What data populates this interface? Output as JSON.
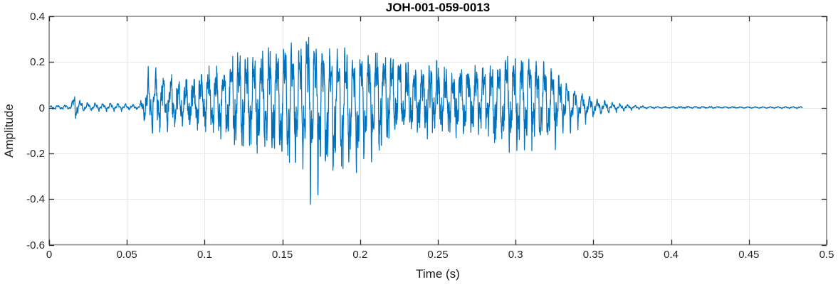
{
  "chart_data": {
    "type": "line",
    "subtype": "audio-waveform",
    "title": "JOH-001-059-0013",
    "xlabel": "Time (s)",
    "ylabel": "Amplitude",
    "xlim": [
      0,
      0.5
    ],
    "ylim": [
      -0.6,
      0.4
    ],
    "xticks": [
      0,
      0.05,
      0.1,
      0.15,
      0.2,
      0.25,
      0.3,
      0.35,
      0.4,
      0.45,
      0.5
    ],
    "xtick_labels": [
      "0",
      "0.05",
      "0.1",
      "0.15",
      "0.2",
      "0.25",
      "0.3",
      "0.35",
      "0.4",
      "0.45",
      "0.5"
    ],
    "yticks": [
      -0.6,
      -0.4,
      -0.2,
      0,
      0.2,
      0.4
    ],
    "ytick_labels": [
      "-0.6",
      "-0.4",
      "-0.2",
      "0",
      "0.2",
      "0.4"
    ],
    "grid": true,
    "box": true,
    "tick_direction": "in",
    "line_color": "#0072BD",
    "axis_color": "#898989",
    "tick_color": "#262626",
    "grid_color": "#E7E7E7",
    "text_color": "#262626",
    "signal": {
      "t_start": 0,
      "t_end": 0.4846,
      "carriers_hz": [
        205,
        610,
        1250
      ],
      "envelope_t": [
        0,
        0.014,
        0.0165,
        0.018,
        0.02,
        0.024,
        0.045,
        0.058,
        0.06,
        0.064,
        0.075,
        0.09,
        0.1,
        0.106,
        0.112,
        0.118,
        0.124,
        0.132,
        0.14,
        0.15,
        0.158,
        0.165,
        0.172,
        0.18,
        0.188,
        0.196,
        0.205,
        0.213,
        0.22,
        0.228,
        0.235,
        0.243,
        0.25,
        0.258,
        0.265,
        0.272,
        0.28,
        0.288,
        0.295,
        0.302,
        0.308,
        0.315,
        0.322,
        0.328,
        0.334,
        0.34,
        0.347,
        0.355,
        0.365,
        0.375,
        0.385,
        0.395,
        0.41,
        0.425,
        0.44,
        0.46,
        0.4846
      ],
      "envelope_hi": [
        0.01,
        0.012,
        0.075,
        0.055,
        0.03,
        0.022,
        0.02,
        0.018,
        0.06,
        0.19,
        0.2,
        0.195,
        0.22,
        0.25,
        0.24,
        0.32,
        0.3,
        0.27,
        0.3,
        0.32,
        0.27,
        0.33,
        0.29,
        0.26,
        0.27,
        0.24,
        0.28,
        0.29,
        0.3,
        0.29,
        0.25,
        0.26,
        0.3,
        0.23,
        0.28,
        0.23,
        0.26,
        0.25,
        0.28,
        0.23,
        0.27,
        0.22,
        0.18,
        0.14,
        0.1,
        0.07,
        0.05,
        0.035,
        0.02,
        0.013,
        0.008,
        0.006,
        0.009,
        0.008,
        0.006,
        0.005,
        0.005
      ],
      "envelope_lo": [
        -0.01,
        -0.012,
        -0.095,
        -0.06,
        -0.03,
        -0.022,
        -0.02,
        -0.018,
        -0.08,
        -0.27,
        -0.3,
        -0.28,
        -0.33,
        -0.42,
        -0.45,
        -0.5,
        -0.46,
        -0.43,
        -0.42,
        -0.44,
        -0.4,
        -0.47,
        -0.49,
        -0.5,
        -0.48,
        -0.44,
        -0.46,
        -0.42,
        -0.38,
        -0.31,
        -0.42,
        -0.35,
        -0.36,
        -0.44,
        -0.42,
        -0.38,
        -0.33,
        -0.4,
        -0.42,
        -0.34,
        -0.31,
        -0.29,
        -0.25,
        -0.2,
        -0.15,
        -0.1,
        -0.07,
        -0.045,
        -0.025,
        -0.015,
        -0.009,
        -0.006,
        -0.01,
        -0.009,
        -0.006,
        -0.005,
        -0.005
      ]
    }
  }
}
